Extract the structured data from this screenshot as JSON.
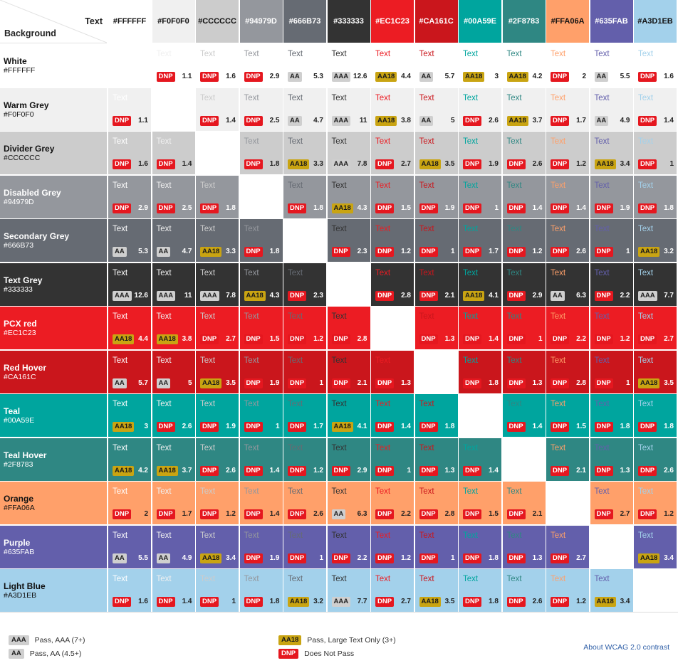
{
  "header": {
    "text_label": "Text",
    "background_label": "Background"
  },
  "colors": [
    {
      "name": "White",
      "hex": "#FFFFFF"
    },
    {
      "name": "Warm Grey",
      "hex": "#F0F0F0"
    },
    {
      "name": "Divider Grey",
      "hex": "#CCCCCC"
    },
    {
      "name": "Disabled Grey",
      "hex": "#94979D"
    },
    {
      "name": "Secondary Grey",
      "hex": "#666B73"
    },
    {
      "name": "Text Grey",
      "hex": "#333333"
    },
    {
      "name": "PCX red",
      "hex": "#EC1C23"
    },
    {
      "name": "Red Hover",
      "hex": "#CA161C"
    },
    {
      "name": "Teal",
      "hex": "#00A59E"
    },
    {
      "name": "Teal Hover",
      "hex": "#2F8783"
    },
    {
      "name": "Orange",
      "hex": "#FFA06A"
    },
    {
      "name": "Purple",
      "hex": "#635FAB"
    },
    {
      "name": "Light Blue",
      "hex": "#A3D1EB"
    }
  ],
  "sample_text": "Text",
  "matrix": [
    [
      null,
      [
        "DNP",
        "1.1"
      ],
      [
        "DNP",
        "1.6"
      ],
      [
        "DNP",
        "2.9"
      ],
      [
        "AA",
        "5.3"
      ],
      [
        "AAA",
        "12.6"
      ],
      [
        "AA18",
        "4.4"
      ],
      [
        "AA",
        "5.7"
      ],
      [
        "AA18",
        "3"
      ],
      [
        "AA18",
        "4.2"
      ],
      [
        "DNP",
        "2"
      ],
      [
        "AA",
        "5.5"
      ],
      [
        "DNP",
        "1.6"
      ]
    ],
    [
      [
        "DNP",
        "1.1"
      ],
      null,
      [
        "DNP",
        "1.4"
      ],
      [
        "DNP",
        "2.5"
      ],
      [
        "AA",
        "4.7"
      ],
      [
        "AAA",
        "11"
      ],
      [
        "AA18",
        "3.8"
      ],
      [
        "AA",
        "5"
      ],
      [
        "DNP",
        "2.6"
      ],
      [
        "AA18",
        "3.7"
      ],
      [
        "DNP",
        "1.7"
      ],
      [
        "AA",
        "4.9"
      ],
      [
        "DNP",
        "1.4"
      ]
    ],
    [
      [
        "DNP",
        "1.6"
      ],
      [
        "DNP",
        "1.4"
      ],
      null,
      [
        "DNP",
        "1.8"
      ],
      [
        "AA18",
        "3.3"
      ],
      [
        "AAA",
        "7.8"
      ],
      [
        "DNP",
        "2.7"
      ],
      [
        "AA18",
        "3.5"
      ],
      [
        "DNP",
        "1.9"
      ],
      [
        "DNP",
        "2.6"
      ],
      [
        "DNP",
        "1.2"
      ],
      [
        "AA18",
        "3.4"
      ],
      [
        "DNP",
        "1"
      ]
    ],
    [
      [
        "DNP",
        "2.9"
      ],
      [
        "DNP",
        "2.5"
      ],
      [
        "DNP",
        "1.8"
      ],
      null,
      [
        "DNP",
        "1.8"
      ],
      [
        "AA18",
        "4.3"
      ],
      [
        "DNP",
        "1.5"
      ],
      [
        "DNP",
        "1.9"
      ],
      [
        "DNP",
        "1"
      ],
      [
        "DNP",
        "1.4"
      ],
      [
        "DNP",
        "1.4"
      ],
      [
        "DNP",
        "1.9"
      ],
      [
        "DNP",
        "1.8"
      ]
    ],
    [
      [
        "AA",
        "5.3"
      ],
      [
        "AA",
        "4.7"
      ],
      [
        "AA18",
        "3.3"
      ],
      [
        "DNP",
        "1.8"
      ],
      null,
      [
        "DNP",
        "2.3"
      ],
      [
        "DNP",
        "1.2"
      ],
      [
        "DNP",
        "1"
      ],
      [
        "DNP",
        "1.7"
      ],
      [
        "DNP",
        "1.2"
      ],
      [
        "DNP",
        "2.6"
      ],
      [
        "DNP",
        "1"
      ],
      [
        "AA18",
        "3.2"
      ]
    ],
    [
      [
        "AAA",
        "12.6"
      ],
      [
        "AAA",
        "11"
      ],
      [
        "AAA",
        "7.8"
      ],
      [
        "AA18",
        "4.3"
      ],
      [
        "DNP",
        "2.3"
      ],
      null,
      [
        "DNP",
        "2.8"
      ],
      [
        "DNP",
        "2.1"
      ],
      [
        "AA18",
        "4.1"
      ],
      [
        "DNP",
        "2.9"
      ],
      [
        "AA",
        "6.3"
      ],
      [
        "DNP",
        "2.2"
      ],
      [
        "AAA",
        "7.7"
      ]
    ],
    [
      [
        "AA18",
        "4.4"
      ],
      [
        "AA18",
        "3.8"
      ],
      [
        "DNP",
        "2.7"
      ],
      [
        "DNP",
        "1.5"
      ],
      [
        "DNP",
        "1.2"
      ],
      [
        "DNP",
        "2.8"
      ],
      null,
      [
        "DNP",
        "1.3"
      ],
      [
        "DNP",
        "1.4"
      ],
      [
        "DNP",
        "1"
      ],
      [
        "DNP",
        "2.2"
      ],
      [
        "DNP",
        "1.2"
      ],
      [
        "DNP",
        "2.7"
      ]
    ],
    [
      [
        "AA",
        "5.7"
      ],
      [
        "AA",
        "5"
      ],
      [
        "AA18",
        "3.5"
      ],
      [
        "DNP",
        "1.9"
      ],
      [
        "DNP",
        "1"
      ],
      [
        "DNP",
        "2.1"
      ],
      [
        "DNP",
        "1.3"
      ],
      null,
      [
        "DNP",
        "1.8"
      ],
      [
        "DNP",
        "1.3"
      ],
      [
        "DNP",
        "2.8"
      ],
      [
        "DNP",
        "1"
      ],
      [
        "AA18",
        "3.5"
      ]
    ],
    [
      [
        "AA18",
        "3"
      ],
      [
        "DNP",
        "2.6"
      ],
      [
        "DNP",
        "1.9"
      ],
      [
        "DNP",
        "1"
      ],
      [
        "DNP",
        "1.7"
      ],
      [
        "AA18",
        "4.1"
      ],
      [
        "DNP",
        "1.4"
      ],
      [
        "DNP",
        "1.8"
      ],
      null,
      [
        "DNP",
        "1.4"
      ],
      [
        "DNP",
        "1.5"
      ],
      [
        "DNP",
        "1.8"
      ],
      [
        "DNP",
        "1.8"
      ]
    ],
    [
      [
        "AA18",
        "4.2"
      ],
      [
        "AA18",
        "3.7"
      ],
      [
        "DNP",
        "2.6"
      ],
      [
        "DNP",
        "1.4"
      ],
      [
        "DNP",
        "1.2"
      ],
      [
        "DNP",
        "2.9"
      ],
      [
        "DNP",
        "1"
      ],
      [
        "DNP",
        "1.3"
      ],
      [
        "DNP",
        "1.4"
      ],
      null,
      [
        "DNP",
        "2.1"
      ],
      [
        "DNP",
        "1.3"
      ],
      [
        "DNP",
        "2.6"
      ]
    ],
    [
      [
        "DNP",
        "2"
      ],
      [
        "DNP",
        "1.7"
      ],
      [
        "DNP",
        "1.2"
      ],
      [
        "DNP",
        "1.4"
      ],
      [
        "DNP",
        "2.6"
      ],
      [
        "AA",
        "6.3"
      ],
      [
        "DNP",
        "2.2"
      ],
      [
        "DNP",
        "2.8"
      ],
      [
        "DNP",
        "1.5"
      ],
      [
        "DNP",
        "2.1"
      ],
      null,
      [
        "DNP",
        "2.7"
      ],
      [
        "DNP",
        "1.2"
      ]
    ],
    [
      [
        "AA",
        "5.5"
      ],
      [
        "AA",
        "4.9"
      ],
      [
        "AA18",
        "3.4"
      ],
      [
        "DNP",
        "1.9"
      ],
      [
        "DNP",
        "1"
      ],
      [
        "DNP",
        "2.2"
      ],
      [
        "DNP",
        "1.2"
      ],
      [
        "DNP",
        "1"
      ],
      [
        "DNP",
        "1.8"
      ],
      [
        "DNP",
        "1.3"
      ],
      [
        "DNP",
        "2.7"
      ],
      null,
      [
        "AA18",
        "3.4"
      ]
    ],
    [
      [
        "DNP",
        "1.6"
      ],
      [
        "DNP",
        "1.4"
      ],
      [
        "DNP",
        "1"
      ],
      [
        "DNP",
        "1.8"
      ],
      [
        "AA18",
        "3.2"
      ],
      [
        "AAA",
        "7.7"
      ],
      [
        "DNP",
        "2.7"
      ],
      [
        "AA18",
        "3.5"
      ],
      [
        "DNP",
        "1.8"
      ],
      [
        "DNP",
        "2.6"
      ],
      [
        "DNP",
        "1.2"
      ],
      [
        "AA18",
        "3.4"
      ],
      null
    ]
  ],
  "legend": {
    "aaa": {
      "badge": "AAA",
      "label": "Pass, AAA (7+)"
    },
    "aa": {
      "badge": "AA",
      "label": "Pass, AA (4.5+)"
    },
    "aa18": {
      "badge": "AA18",
      "label": "Pass, Large Text Only (3+)"
    },
    "dnp": {
      "badge": "DNP",
      "label": "Does Not Pass"
    },
    "about_link": "About WCAG 2.0 contrast"
  }
}
